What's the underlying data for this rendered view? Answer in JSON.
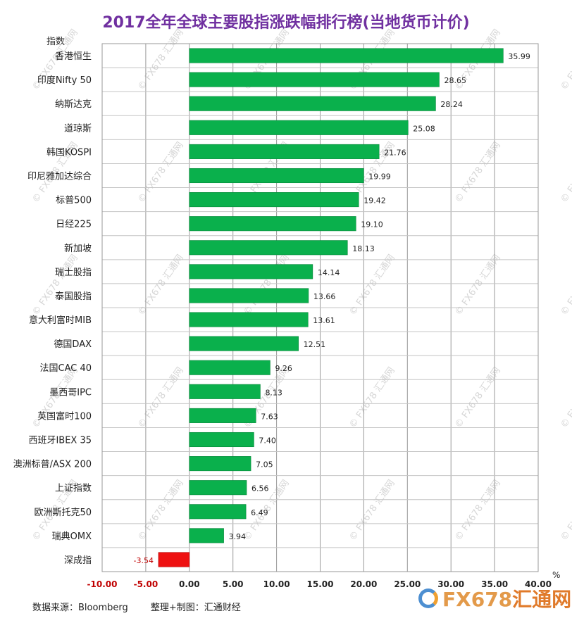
{
  "watermark": {
    "text": "© FX678 汇通网"
  },
  "footer": {
    "source": "数据来源：Bloomberg",
    "credit": "整理+制图：汇通财经"
  },
  "logo": {
    "text": "FX678",
    "cn": "汇通网"
  },
  "chart_data": {
    "type": "bar",
    "orientation": "horizontal",
    "title": "2017全年全球主要股指涨跌幅排行榜(当地货币计价)",
    "ylabel": "指数",
    "xlabel": "%",
    "xlim": [
      -10,
      40
    ],
    "xticks": [
      "-10.00",
      "-5.00",
      "0.00",
      "5.00",
      "10.00",
      "15.00",
      "20.00",
      "25.00",
      "30.00",
      "35.00",
      "40.00"
    ],
    "grid": true,
    "colors": {
      "positive": "#0ab04c",
      "negative": "#ee1111",
      "negative_text": "#c00000"
    },
    "categories": [
      "香港恒生",
      "印度Nifty 50",
      "纳斯达克",
      "道琼斯",
      "韩国KOSPI",
      "印尼雅加达综合",
      "标普500",
      "日经225",
      "新加坡",
      "瑞士股指",
      "泰国股指",
      "意大利富时MIB",
      "德国DAX",
      "法国CAC 40",
      "墨西哥IPC",
      "英国富时100",
      "西班牙IBEX 35",
      "澳洲标普/ASX 200",
      "上证指数",
      "欧洲斯托克50",
      "瑞典OMX",
      "深成指"
    ],
    "values": [
      35.99,
      28.65,
      28.24,
      25.08,
      21.76,
      19.99,
      19.42,
      19.1,
      18.13,
      14.14,
      13.66,
      13.61,
      12.51,
      9.26,
      8.13,
      7.63,
      7.4,
      7.05,
      6.56,
      6.49,
      3.94,
      -3.54
    ],
    "labels": [
      "35.99",
      "28.65",
      "28.24",
      "25.08",
      "21.76",
      "19.99",
      "19.42",
      "19.10",
      "18.13",
      "14.14",
      "13.66",
      "13.61",
      "12.51",
      "9.26",
      "8.13",
      "7.63",
      "7.40",
      "7.05",
      "6.56",
      "6.49",
      "3.94",
      "-3.54"
    ]
  }
}
